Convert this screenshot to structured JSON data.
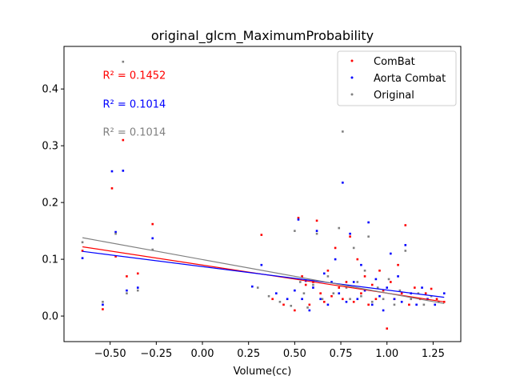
{
  "chart_data": {
    "type": "scatter",
    "title": "original_glcm_MaximumProbability",
    "xlabel": "Volume(cc)",
    "ylabel": "",
    "xlim": [
      -0.75,
      1.4
    ],
    "ylim": [
      -0.045,
      0.475
    ],
    "xticks": [
      -0.5,
      -0.25,
      0.0,
      0.25,
      0.5,
      0.75,
      1.0,
      1.25
    ],
    "xtick_labels": [
      "−0.50",
      "−0.25",
      "0.00",
      "0.25",
      "0.50",
      "0.75",
      "1.00",
      "1.25"
    ],
    "yticks": [
      0.0,
      0.1,
      0.2,
      0.3,
      0.4
    ],
    "ytick_labels": [
      "0.0",
      "0.1",
      "0.2",
      "0.3",
      "0.4"
    ],
    "grid": false,
    "legend_position": "top-right",
    "annotations": [
      {
        "text": "R² = 0.1452",
        "color": "#ff0000",
        "x": -0.54,
        "y": 0.425
      },
      {
        "text": "R² = 0.1014",
        "color": "#0000ff",
        "x": -0.54,
        "y": 0.374
      },
      {
        "text": "R² = 0.1014",
        "color": "#808080",
        "x": -0.54,
        "y": 0.325
      }
    ],
    "series": [
      {
        "name": "ComBat",
        "color": "#ff0000",
        "points": [
          [
            -0.65,
            0.115
          ],
          [
            -0.54,
            0.012
          ],
          [
            -0.49,
            0.225
          ],
          [
            -0.47,
            0.105
          ],
          [
            -0.43,
            0.31
          ],
          [
            -0.41,
            0.07
          ],
          [
            -0.35,
            0.075
          ],
          [
            -0.27,
            0.162
          ],
          [
            0.32,
            0.143
          ],
          [
            0.38,
            0.03
          ],
          [
            0.44,
            0.02
          ],
          [
            0.5,
            0.01
          ],
          [
            0.52,
            0.173
          ],
          [
            0.54,
            0.07
          ],
          [
            0.56,
            0.055
          ],
          [
            0.58,
            0.02
          ],
          [
            0.6,
            0.06
          ],
          [
            0.62,
            0.168
          ],
          [
            0.64,
            0.04
          ],
          [
            0.66,
            0.025
          ],
          [
            0.68,
            0.08
          ],
          [
            0.7,
            0.035
          ],
          [
            0.72,
            0.12
          ],
          [
            0.74,
            0.05
          ],
          [
            0.76,
            0.03
          ],
          [
            0.78,
            0.06
          ],
          [
            0.8,
            0.14
          ],
          [
            0.82,
            0.025
          ],
          [
            0.84,
            0.1
          ],
          [
            0.86,
            0.04
          ],
          [
            0.88,
            0.07
          ],
          [
            0.9,
            0.02
          ],
          [
            0.92,
            0.055
          ],
          [
            0.94,
            0.03
          ],
          [
            0.96,
            0.08
          ],
          [
            0.98,
            0.045
          ],
          [
            1.0,
            -0.022
          ],
          [
            1.02,
            0.06
          ],
          [
            1.04,
            0.03
          ],
          [
            1.06,
            0.09
          ],
          [
            1.08,
            0.04
          ],
          [
            1.1,
            0.16
          ],
          [
            1.12,
            0.02
          ],
          [
            1.15,
            0.05
          ],
          [
            1.18,
            0.03
          ],
          [
            1.21,
            0.04
          ],
          [
            1.24,
            0.048
          ],
          [
            1.27,
            0.03
          ],
          [
            1.31,
            0.025
          ]
        ],
        "fit": {
          "x": [
            -0.65,
            1.31
          ],
          "y": [
            0.122,
            0.025
          ]
        }
      },
      {
        "name": "Aorta Combat",
        "color": "#0000ff",
        "points": [
          [
            -0.65,
            0.102
          ],
          [
            -0.54,
            0.02
          ],
          [
            -0.49,
            0.255
          ],
          [
            -0.47,
            0.148
          ],
          [
            -0.43,
            0.256
          ],
          [
            -0.41,
            0.045
          ],
          [
            -0.35,
            0.05
          ],
          [
            -0.27,
            0.137
          ],
          [
            0.27,
            0.052
          ],
          [
            0.32,
            0.09
          ],
          [
            0.4,
            0.04
          ],
          [
            0.46,
            0.03
          ],
          [
            0.5,
            0.045
          ],
          [
            0.52,
            0.17
          ],
          [
            0.54,
            0.03
          ],
          [
            0.56,
            0.062
          ],
          [
            0.58,
            0.01
          ],
          [
            0.6,
            0.05
          ],
          [
            0.62,
            0.15
          ],
          [
            0.64,
            0.03
          ],
          [
            0.66,
            0.075
          ],
          [
            0.68,
            0.02
          ],
          [
            0.7,
            0.06
          ],
          [
            0.72,
            0.1
          ],
          [
            0.74,
            0.04
          ],
          [
            0.76,
            0.235
          ],
          [
            0.78,
            0.025
          ],
          [
            0.8,
            0.145
          ],
          [
            0.82,
            0.06
          ],
          [
            0.84,
            0.03
          ],
          [
            0.86,
            0.09
          ],
          [
            0.88,
            0.045
          ],
          [
            0.9,
            0.165
          ],
          [
            0.92,
            0.02
          ],
          [
            0.94,
            0.065
          ],
          [
            0.96,
            0.035
          ],
          [
            0.98,
            0.01
          ],
          [
            1.0,
            0.05
          ],
          [
            1.02,
            0.11
          ],
          [
            1.04,
            0.03
          ],
          [
            1.06,
            0.07
          ],
          [
            1.08,
            0.025
          ],
          [
            1.1,
            0.125
          ],
          [
            1.13,
            0.04
          ],
          [
            1.16,
            0.02
          ],
          [
            1.19,
            0.05
          ],
          [
            1.22,
            0.03
          ],
          [
            1.26,
            0.02
          ],
          [
            1.31,
            0.04
          ]
        ],
        "fit": {
          "x": [
            -0.65,
            1.31
          ],
          "y": [
            0.114,
            0.033
          ]
        }
      },
      {
        "name": "Original",
        "color": "#808080",
        "points": [
          [
            -0.65,
            0.13
          ],
          [
            -0.54,
            0.025
          ],
          [
            -0.47,
            0.145
          ],
          [
            -0.43,
            0.448
          ],
          [
            -0.41,
            0.04
          ],
          [
            -0.35,
            0.045
          ],
          [
            -0.27,
            0.117
          ],
          [
            0.3,
            0.05
          ],
          [
            0.36,
            0.035
          ],
          [
            0.42,
            0.025
          ],
          [
            0.48,
            0.018
          ],
          [
            0.5,
            0.15
          ],
          [
            0.53,
            0.06
          ],
          [
            0.55,
            0.04
          ],
          [
            0.57,
            0.015
          ],
          [
            0.6,
            0.055
          ],
          [
            0.62,
            0.145
          ],
          [
            0.65,
            0.03
          ],
          [
            0.68,
            0.07
          ],
          [
            0.71,
            0.04
          ],
          [
            0.74,
            0.155
          ],
          [
            0.76,
            0.325
          ],
          [
            0.78,
            0.05
          ],
          [
            0.8,
            0.03
          ],
          [
            0.82,
            0.12
          ],
          [
            0.84,
            0.06
          ],
          [
            0.86,
            0.035
          ],
          [
            0.88,
            0.08
          ],
          [
            0.9,
            0.14
          ],
          [
            0.92,
            0.025
          ],
          [
            0.95,
            0.05
          ],
          [
            0.98,
            0.03
          ],
          [
            1.01,
            0.065
          ],
          [
            1.04,
            0.02
          ],
          [
            1.07,
            0.045
          ],
          [
            1.1,
            0.115
          ],
          [
            1.13,
            0.03
          ],
          [
            1.17,
            0.04
          ],
          [
            1.2,
            0.02
          ],
          [
            1.24,
            0.035
          ],
          [
            1.28,
            0.025
          ]
        ],
        "fit": {
          "x": [
            -0.65,
            1.31
          ],
          "y": [
            0.138,
            0.022
          ]
        }
      }
    ]
  }
}
